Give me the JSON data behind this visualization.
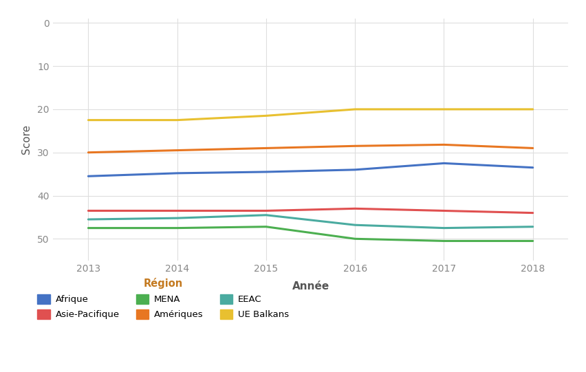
{
  "years": [
    2013,
    2014,
    2015,
    2016,
    2017,
    2018
  ],
  "series": {
    "Afrique": {
      "color": "#4472C4",
      "values": [
        35.5,
        34.8,
        34.5,
        34.0,
        32.5,
        33.5
      ]
    },
    "Amériques": {
      "color": "#E87722",
      "values": [
        30.0,
        29.5,
        29.0,
        28.5,
        28.2,
        29.0
      ]
    },
    "Asie-Pacifique": {
      "color": "#E05050",
      "values": [
        43.5,
        43.5,
        43.5,
        43.0,
        43.5,
        44.0
      ]
    },
    "EEAC": {
      "color": "#4AABA0",
      "values": [
        45.5,
        45.2,
        44.5,
        46.8,
        47.5,
        47.2
      ]
    },
    "MENA": {
      "color": "#4CAF50",
      "values": [
        47.5,
        47.5,
        47.2,
        50.0,
        50.5,
        50.5
      ]
    },
    "UE Balkans": {
      "color": "#E8C030",
      "values": [
        22.5,
        22.5,
        21.5,
        20.0,
        20.0,
        20.0
      ]
    }
  },
  "xlabel": "Année",
  "ylabel": "Score",
  "legend_title": "Région",
  "legend_title_color": "#C47A20",
  "xlabel_color": "#555555",
  "ylabel_color": "#555555",
  "tick_color": "#888888",
  "background_color": "#FFFFFF",
  "grid_color": "#DEDEDE",
  "ylim_bottom": 55,
  "ylim_top": -1,
  "yticks": [
    0,
    10,
    20,
    30,
    40,
    50
  ],
  "xticks": [
    2013,
    2014,
    2015,
    2016,
    2017,
    2018
  ],
  "line_width": 2.2,
  "legend_order": [
    "Afrique",
    "Asie-Pacifique",
    "MENA",
    "Amériques",
    "EEAC",
    "UE Balkans"
  ]
}
